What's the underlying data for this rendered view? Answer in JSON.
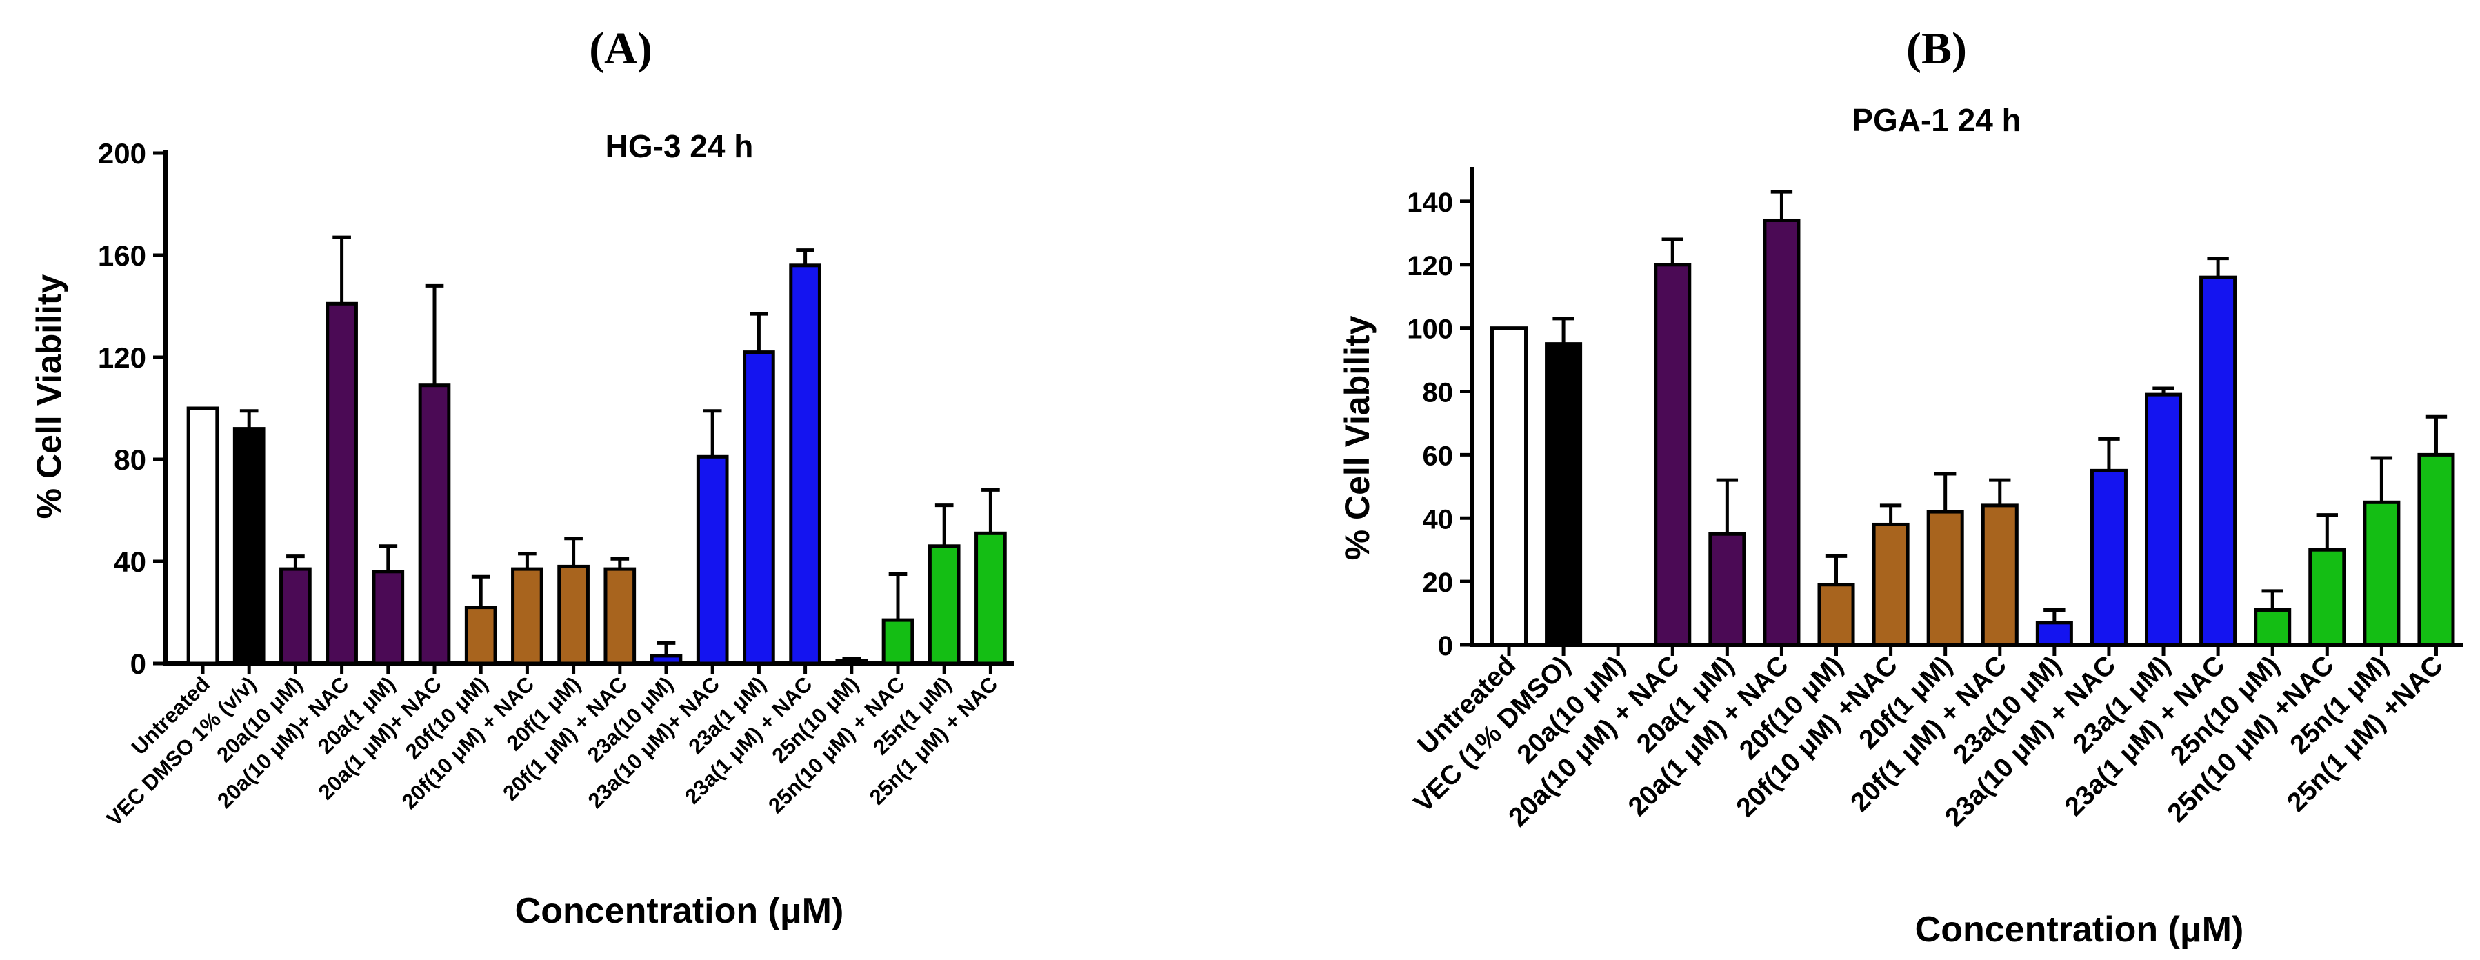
{
  "chart_data": [
    {
      "type": "bar",
      "panel_label": "(A)",
      "title": "HG-3 24 h",
      "xlabel": "Concentration (μM)",
      "ylabel": "% Cell Viability",
      "ylim": [
        0,
        200
      ],
      "yticks": [
        0,
        40,
        80,
        120,
        160,
        200
      ],
      "categories": [
        "Untreated",
        "VEC DMSO 1% (v/v)",
        "20a(10 μM)",
        "20a(10 μM)+ NAC",
        "20a(1 μM)",
        "20a(1 μM)+ NAC",
        "20f(10 μM)",
        "20f(10 μM) + NAC",
        "20f(1 μM)",
        "20f(1 μM) + NAC",
        "23a(10 μM)",
        "23a(10 μM)+ NAC",
        "23a(1 μM)",
        "23a(1 μM) + NAC",
        "25n(10 μM)",
        "25n(10 μM) + NAC",
        "25n(1 μM)",
        "25n(1 μM) + NAC"
      ],
      "values": [
        100,
        92,
        37,
        141,
        36,
        109,
        22,
        37,
        38,
        37,
        3,
        81,
        122,
        156,
        1,
        17,
        46,
        51
      ],
      "errors": [
        0,
        7,
        5,
        26,
        10,
        39,
        12,
        6,
        11,
        4,
        5,
        18,
        15,
        6,
        1,
        18,
        16,
        17
      ],
      "colors": [
        "#ffffff",
        "#000000",
        "#4b0a55",
        "#4b0a55",
        "#4b0a55",
        "#4b0a55",
        "#a8641e",
        "#a8641e",
        "#a8641e",
        "#a8641e",
        "#1414f0",
        "#1414f0",
        "#1414f0",
        "#1414f0",
        "#14be14",
        "#14be14",
        "#14be14",
        "#14be14"
      ]
    },
    {
      "type": "bar",
      "panel_label": "(B)",
      "title": "PGA-1 24 h",
      "xlabel": "Concentration (μM)",
      "ylabel": "% Cell Viability",
      "ylim": [
        0,
        150
      ],
      "yticks": [
        0,
        20,
        40,
        60,
        80,
        100,
        120,
        140
      ],
      "categories": [
        "Untreated",
        "VEC (1% DMSO)",
        "20a(10 μM)",
        "20a(10 μM) + NAC",
        "20a(1 μM)",
        "20a(1 μM) + NAC",
        "20f(10 μM)",
        "20f(10 μM) +NAC",
        "20f(1 μM)",
        "20f(1 μM) + NAC",
        "23a(10 μM)",
        "23a(10 μM) + NAC",
        "23a(1 μM)",
        "23a(1 μM) + NAC",
        "25n(10 μM)",
        "25n(10 μM) +NAC",
        "25n(1 μM)",
        "25n(1 μM) +NAC"
      ],
      "values": [
        100,
        95,
        0,
        120,
        35,
        134,
        19,
        38,
        42,
        44,
        7,
        55,
        79,
        116,
        11,
        30,
        45,
        60
      ],
      "errors": [
        0,
        8,
        0,
        8,
        17,
        9,
        9,
        6,
        12,
        8,
        4,
        10,
        2,
        6,
        6,
        11,
        14,
        12
      ],
      "colors": [
        "#ffffff",
        "#000000",
        "#4b0a55",
        "#4b0a55",
        "#4b0a55",
        "#4b0a55",
        "#a8641e",
        "#a8641e",
        "#a8641e",
        "#a8641e",
        "#1414f0",
        "#1414f0",
        "#1414f0",
        "#1414f0",
        "#14be14",
        "#14be14",
        "#14be14",
        "#14be14"
      ]
    }
  ]
}
